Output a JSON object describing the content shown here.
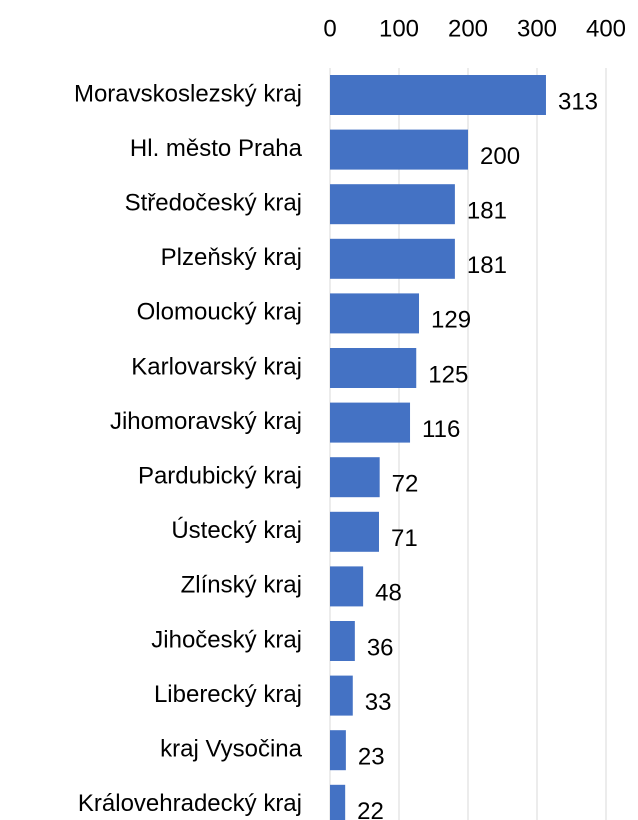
{
  "chart_data": {
    "type": "bar",
    "orientation": "horizontal",
    "categories": [
      "Moravskoslezský kraj",
      "Hl. město Praha",
      "Středočeský kraj",
      "Plzeňský kraj",
      "Olomoucký kraj",
      "Karlovarský kraj",
      "Jihomoravský kraj",
      "Pardubický kraj",
      "Ústecký kraj",
      "Zlínský kraj",
      "Jihočeský kraj",
      "Liberecký kraj",
      "kraj Vysočina",
      "Královehradecký kraj"
    ],
    "values": [
      313,
      200,
      181,
      181,
      129,
      125,
      116,
      72,
      71,
      48,
      36,
      33,
      23,
      22
    ],
    "color": "#4472c4",
    "xlim": [
      0,
      400
    ],
    "xticks": [
      0,
      100,
      200,
      300,
      400
    ],
    "grid": true
  }
}
